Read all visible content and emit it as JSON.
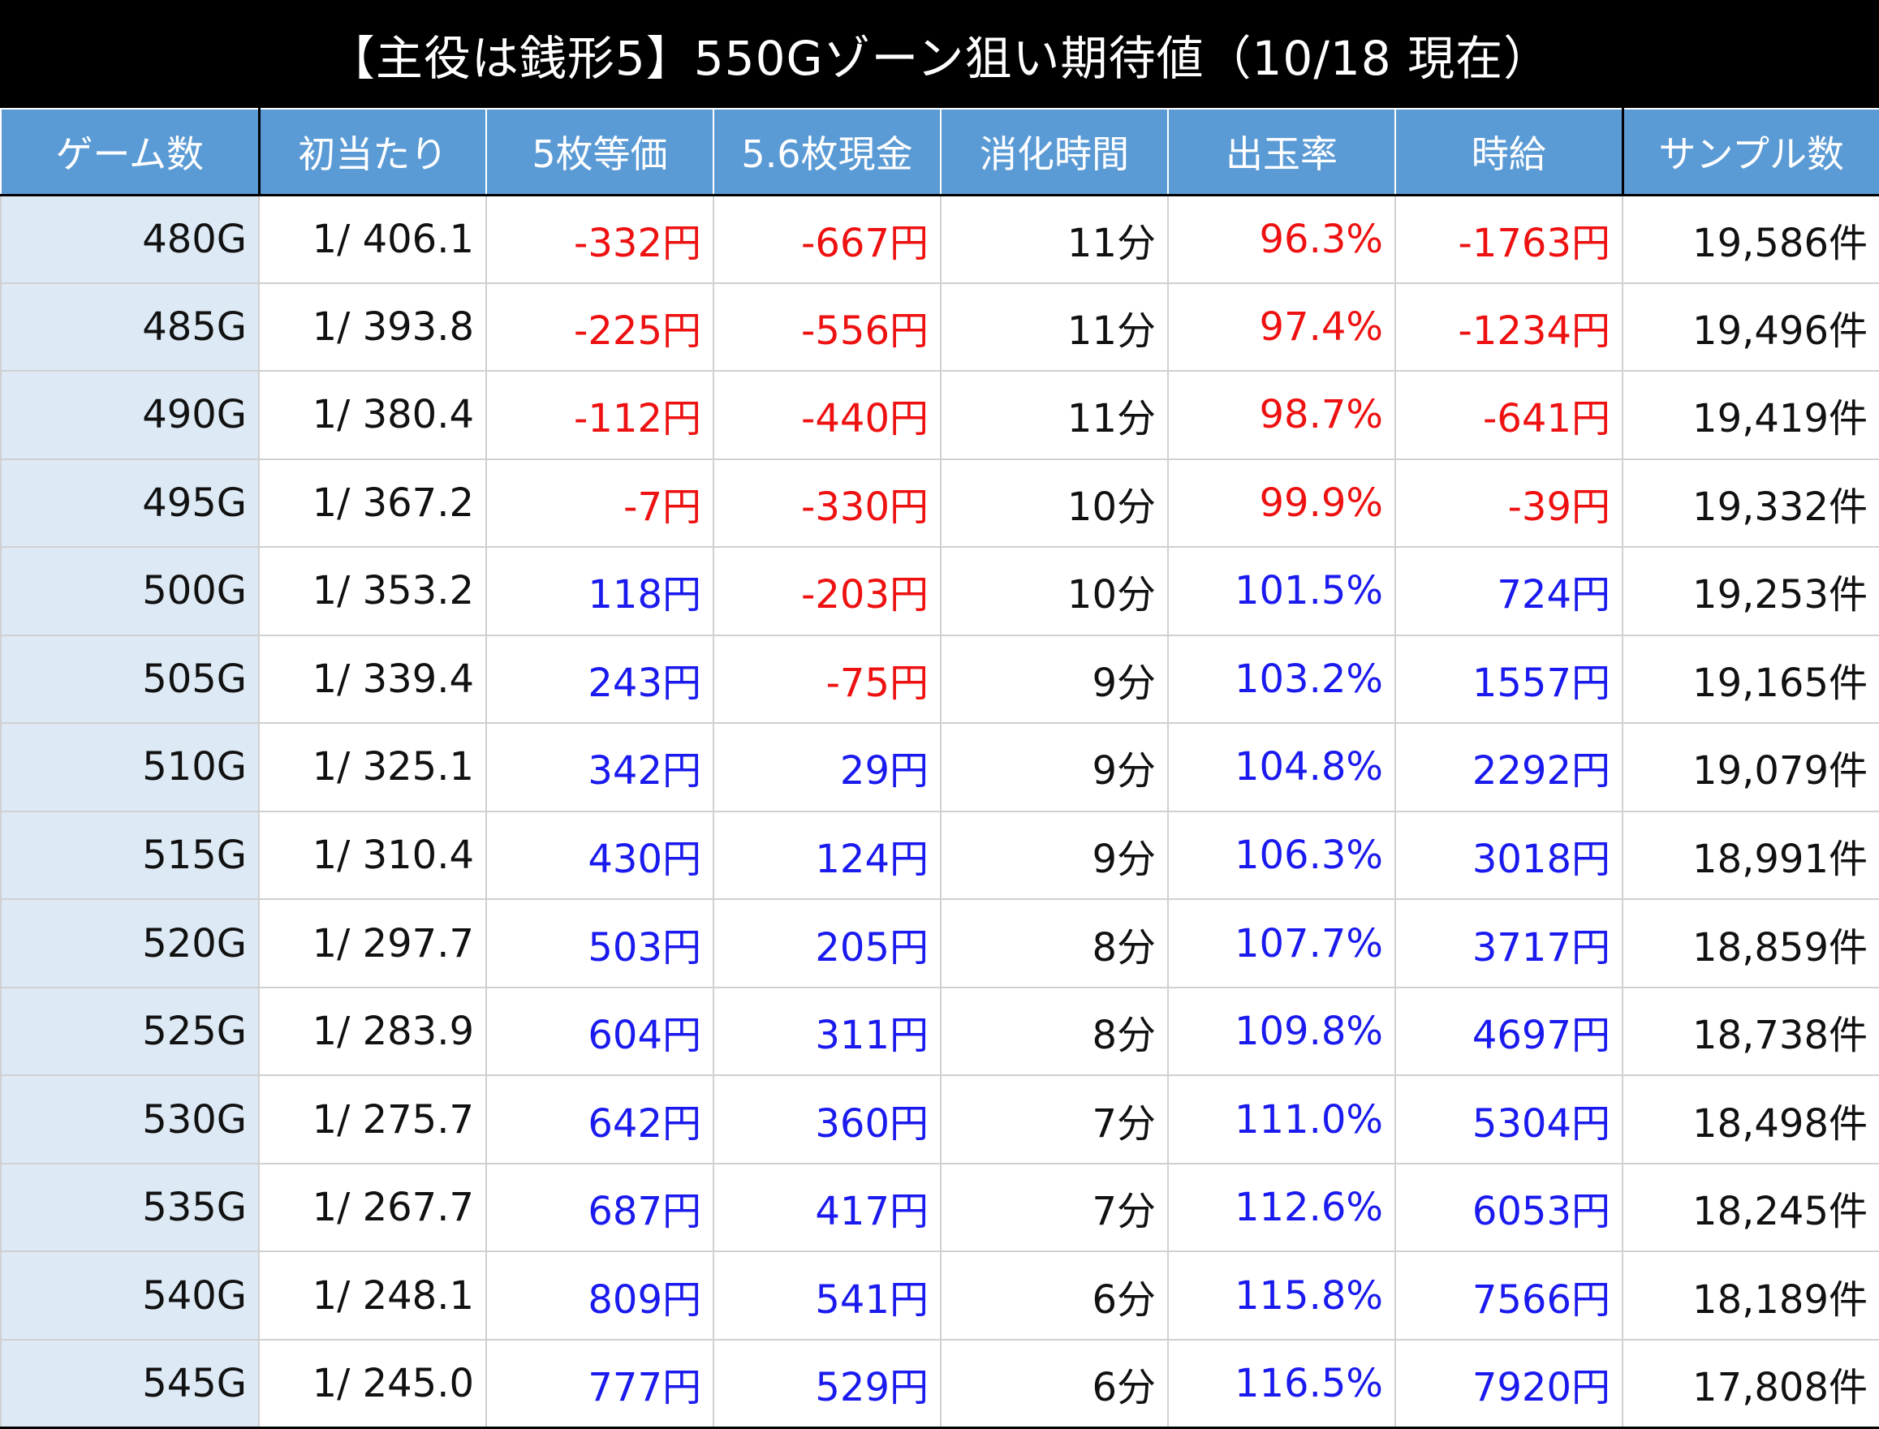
{
  "title": "【主役は銭形5】550Gゾーン狙い期待値（10/18 現在）",
  "colors": {
    "negative": "#ee1111",
    "positive": "#1a1aee",
    "header_bg": "#5b9bd5",
    "first_col_bg": "#ddeaf6"
  },
  "headers": [
    "ゲーム数",
    "初当たり",
    "5枚等価",
    "5.6枚現金",
    "消化時間",
    "出玉率",
    "時給",
    "サンプル数"
  ],
  "rows": [
    {
      "game": "480G",
      "prob": "1/ 406.1",
      "eq5": "-332円",
      "cash56": "-667円",
      "time": "11分",
      "payout": "96.3%",
      "hourly": "-1763円",
      "samples": "19,586件"
    },
    {
      "game": "485G",
      "prob": "1/ 393.8",
      "eq5": "-225円",
      "cash56": "-556円",
      "time": "11分",
      "payout": "97.4%",
      "hourly": "-1234円",
      "samples": "19,496件"
    },
    {
      "game": "490G",
      "prob": "1/ 380.4",
      "eq5": "-112円",
      "cash56": "-440円",
      "time": "11分",
      "payout": "98.7%",
      "hourly": "-641円",
      "samples": "19,419件"
    },
    {
      "game": "495G",
      "prob": "1/ 367.2",
      "eq5": "-7円",
      "cash56": "-330円",
      "time": "10分",
      "payout": "99.9%",
      "hourly": "-39円",
      "samples": "19,332件"
    },
    {
      "game": "500G",
      "prob": "1/ 353.2",
      "eq5": "118円",
      "cash56": "-203円",
      "time": "10分",
      "payout": "101.5%",
      "hourly": "724円",
      "samples": "19,253件"
    },
    {
      "game": "505G",
      "prob": "1/ 339.4",
      "eq5": "243円",
      "cash56": "-75円",
      "time": "9分",
      "payout": "103.2%",
      "hourly": "1557円",
      "samples": "19,165件"
    },
    {
      "game": "510G",
      "prob": "1/ 325.1",
      "eq5": "342円",
      "cash56": "29円",
      "time": "9分",
      "payout": "104.8%",
      "hourly": "2292円",
      "samples": "19,079件"
    },
    {
      "game": "515G",
      "prob": "1/ 310.4",
      "eq5": "430円",
      "cash56": "124円",
      "time": "9分",
      "payout": "106.3%",
      "hourly": "3018円",
      "samples": "18,991件"
    },
    {
      "game": "520G",
      "prob": "1/ 297.7",
      "eq5": "503円",
      "cash56": "205円",
      "time": "8分",
      "payout": "107.7%",
      "hourly": "3717円",
      "samples": "18,859件"
    },
    {
      "game": "525G",
      "prob": "1/ 283.9",
      "eq5": "604円",
      "cash56": "311円",
      "time": "8分",
      "payout": "109.8%",
      "hourly": "4697円",
      "samples": "18,738件"
    },
    {
      "game": "530G",
      "prob": "1/ 275.7",
      "eq5": "642円",
      "cash56": "360円",
      "time": "7分",
      "payout": "111.0%",
      "hourly": "5304円",
      "samples": "18,498件"
    },
    {
      "game": "535G",
      "prob": "1/ 267.7",
      "eq5": "687円",
      "cash56": "417円",
      "time": "7分",
      "payout": "112.6%",
      "hourly": "6053円",
      "samples": "18,245件"
    },
    {
      "game": "540G",
      "prob": "1/ 248.1",
      "eq5": "809円",
      "cash56": "541円",
      "time": "6分",
      "payout": "115.8%",
      "hourly": "7566円",
      "samples": "18,189件"
    },
    {
      "game": "545G",
      "prob": "1/ 245.0",
      "eq5": "777円",
      "cash56": "529円",
      "time": "6分",
      "payout": "116.5%",
      "hourly": "7920円",
      "samples": "17,808件"
    }
  ]
}
